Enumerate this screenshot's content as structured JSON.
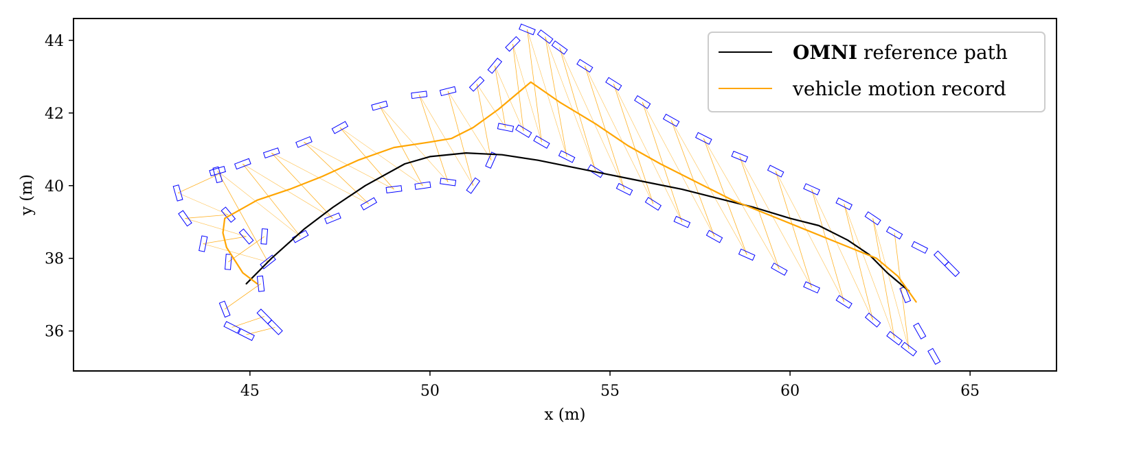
{
  "chart_data": {
    "type": "line",
    "title": "",
    "xlabel": "x (m)",
    "ylabel": "y (m)",
    "xlim": [
      40.1,
      67.4
    ],
    "ylim": [
      34.9,
      44.6
    ],
    "xticks": [
      45,
      50,
      55,
      60,
      65
    ],
    "yticks": [
      36,
      38,
      40,
      42,
      44
    ],
    "grid": false,
    "legend_position": "top-right",
    "legend": [
      {
        "bold": "OMNI",
        "text": "reference path",
        "color": "#000000"
      },
      {
        "bold": "",
        "text": "vehicle motion record",
        "color": "#FFA500"
      }
    ],
    "series": [
      {
        "name": "OMNI reference path",
        "color": "#000000",
        "x": [
          44.9,
          45.6,
          46.5,
          47.3,
          48.2,
          49.3,
          50.0,
          51.0,
          52.0,
          53.0,
          54.0,
          55.0,
          56.0,
          57.0,
          58.0,
          59.0,
          60.0,
          60.8,
          61.6,
          62.2,
          62.7,
          63.3
        ],
        "y": [
          37.3,
          38.0,
          38.8,
          39.4,
          40.0,
          40.6,
          40.8,
          40.9,
          40.85,
          40.7,
          40.5,
          40.3,
          40.1,
          39.9,
          39.65,
          39.4,
          39.1,
          38.9,
          38.5,
          38.1,
          37.6,
          37.1
        ]
      },
      {
        "name": "vehicle motion record",
        "color": "#FFA500",
        "x": [
          45.2,
          44.8,
          44.35,
          44.25,
          44.3,
          45.2,
          46.1,
          47.0,
          48.0,
          49.0,
          50.0,
          50.6,
          51.2,
          51.9,
          52.8,
          53.6,
          54.6,
          55.5,
          56.4,
          57.4,
          58.4,
          59.4,
          60.4,
          61.4,
          62.4,
          63.0,
          63.5
        ],
        "y": [
          37.3,
          37.6,
          38.3,
          38.7,
          39.1,
          39.6,
          39.9,
          40.25,
          40.7,
          41.05,
          41.2,
          41.3,
          41.6,
          42.1,
          42.85,
          42.3,
          41.7,
          41.1,
          40.6,
          40.1,
          39.6,
          39.2,
          38.8,
          38.4,
          38.0,
          37.5,
          36.8
        ]
      }
    ],
    "annotations": [
      {
        "type": "vehicle footprints",
        "color": "#0000FF",
        "description": "rectangular wheel footprints (blue outlines) along both sides of the motion record"
      },
      {
        "type": "connection lines",
        "color": "#FFA500",
        "description": "thin lines linking footprint pairs across the vehicle width"
      }
    ],
    "footprint_tracks": [
      {
        "name": "left-outer",
        "x": [
          43.0,
          43.2,
          43.7,
          44.1,
          44.8,
          45.6,
          46.5,
          47.5,
          48.6,
          49.7,
          50.5,
          51.3,
          51.8,
          52.3,
          52.7,
          53.2,
          53.6,
          54.3,
          55.1,
          55.9,
          56.7,
          57.6,
          58.6,
          59.6,
          60.6,
          61.5,
          62.3,
          62.9,
          63.6,
          64.2,
          64.5
        ],
        "y": [
          39.8,
          39.1,
          38.4,
          40.4,
          40.6,
          40.9,
          41.2,
          41.6,
          42.2,
          42.5,
          42.6,
          42.8,
          43.3,
          43.9,
          44.3,
          44.1,
          43.8,
          43.3,
          42.8,
          42.3,
          41.8,
          41.3,
          40.8,
          40.4,
          39.9,
          39.5,
          39.1,
          38.7,
          38.3,
          38.0,
          37.7
        ]
      },
      {
        "name": "left-inner",
        "x": [
          44.1,
          44.4,
          44.9,
          45.5,
          46.4,
          47.3,
          48.3,
          49.0,
          49.8,
          50.5,
          51.2,
          51.7,
          52.1,
          52.6,
          53.1,
          53.8,
          54.6,
          55.4,
          56.2,
          57.0,
          57.9,
          58.8,
          59.7,
          60.6,
          61.5,
          62.3,
          62.9,
          63.3
        ],
        "y": [
          40.3,
          39.2,
          38.6,
          37.9,
          38.6,
          39.1,
          39.5,
          39.9,
          40.0,
          40.1,
          40.0,
          40.7,
          41.6,
          41.5,
          41.2,
          40.8,
          40.4,
          39.9,
          39.5,
          39.0,
          38.6,
          38.1,
          37.7,
          37.2,
          36.8,
          36.3,
          35.8,
          35.5
        ]
      },
      {
        "name": "rear-left",
        "x": [
          44.4,
          44.3,
          44.5,
          44.9
        ],
        "y": [
          37.9,
          36.6,
          36.1,
          35.9
        ]
      },
      {
        "name": "rear-right",
        "x": [
          45.4,
          45.3,
          45.4,
          45.7
        ],
        "y": [
          38.6,
          37.3,
          36.4,
          36.1
        ]
      },
      {
        "name": "front-right-end",
        "x": [
          63.2,
          63.6,
          64.0
        ],
        "y": [
          37.0,
          36.0,
          35.3
        ]
      }
    ]
  }
}
